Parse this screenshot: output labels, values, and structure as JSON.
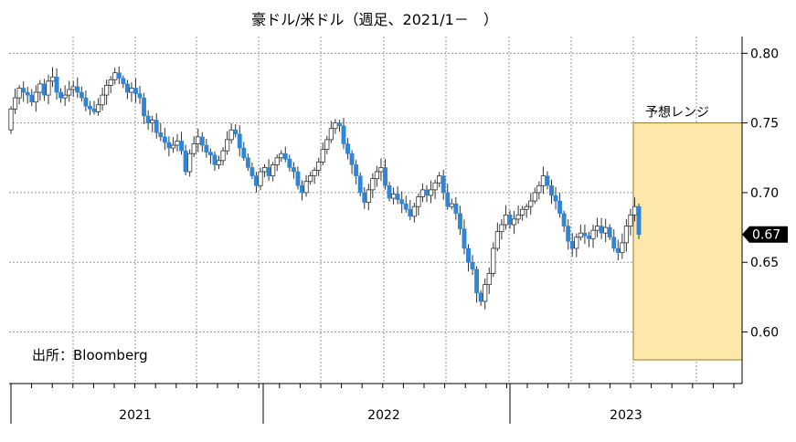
{
  "chart_data": {
    "type": "candlestick",
    "title": "豪ドル/米ドル（週足、2021/1－　）",
    "source_note": "出所：Bloomberg",
    "x_labels": [
      "2021",
      "2022",
      "2023"
    ],
    "y_ticks": [
      "0.80",
      "0.75",
      "0.70",
      "0.65",
      "0.60"
    ],
    "ylim": [
      0.563,
      0.812
    ],
    "grid": "dotted",
    "current_value": "0.67",
    "forecast_band": {
      "label": "予想レンジ",
      "low": 0.58,
      "high": 0.75
    },
    "colors": {
      "up": "#ffffff",
      "down": "#2f86d8",
      "band_fill": "#fde7a9",
      "band_border": "#9a7a2a",
      "badge": "#000000"
    },
    "weekly_close": [
      0.76,
      0.768,
      0.775,
      0.772,
      0.77,
      0.765,
      0.772,
      0.778,
      0.77,
      0.78,
      0.783,
      0.772,
      0.768,
      0.77,
      0.774,
      0.776,
      0.772,
      0.768,
      0.762,
      0.76,
      0.758,
      0.763,
      0.77,
      0.777,
      0.781,
      0.786,
      0.782,
      0.778,
      0.772,
      0.775,
      0.771,
      0.768,
      0.755,
      0.75,
      0.752,
      0.743,
      0.74,
      0.736,
      0.732,
      0.734,
      0.737,
      0.73,
      0.715,
      0.728,
      0.735,
      0.74,
      0.734,
      0.729,
      0.727,
      0.72,
      0.723,
      0.73,
      0.738,
      0.745,
      0.742,
      0.732,
      0.725,
      0.718,
      0.712,
      0.705,
      0.715,
      0.718,
      0.712,
      0.72,
      0.725,
      0.728,
      0.724,
      0.718,
      0.715,
      0.705,
      0.7,
      0.708,
      0.712,
      0.716,
      0.722,
      0.731,
      0.738,
      0.746,
      0.75,
      0.748,
      0.735,
      0.728,
      0.72,
      0.712,
      0.7,
      0.693,
      0.702,
      0.71,
      0.715,
      0.718,
      0.705,
      0.696,
      0.699,
      0.695,
      0.692,
      0.688,
      0.683,
      0.69,
      0.697,
      0.702,
      0.698,
      0.702,
      0.707,
      0.712,
      0.7,
      0.69,
      0.692,
      0.685,
      0.674,
      0.66,
      0.65,
      0.645,
      0.628,
      0.622,
      0.634,
      0.642,
      0.66,
      0.672,
      0.677,
      0.684,
      0.677,
      0.681,
      0.684,
      0.688,
      0.69,
      0.694,
      0.7,
      0.705,
      0.712,
      0.705,
      0.698,
      0.694,
      0.685,
      0.676,
      0.665,
      0.66,
      0.668,
      0.671,
      0.669,
      0.667,
      0.673,
      0.676,
      0.671,
      0.675,
      0.668,
      0.66,
      0.657,
      0.664,
      0.676,
      0.684,
      0.69,
      0.67
    ]
  }
}
